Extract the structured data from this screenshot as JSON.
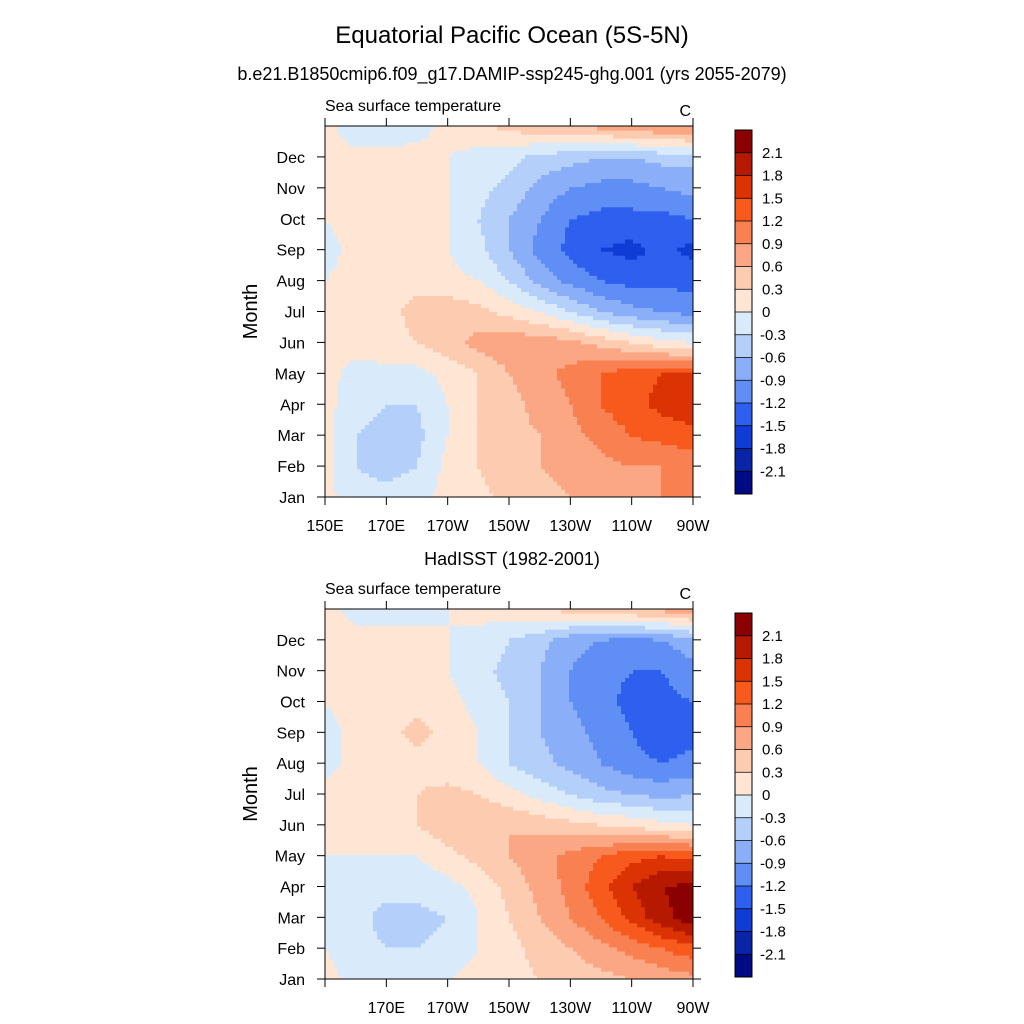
{
  "figure": {
    "title": "Equatorial Pacific Ocean (5S-5N)"
  },
  "colorbar": {
    "levels": [
      "2.1",
      "1.8",
      "1.5",
      "1.2",
      "0.9",
      "0.6",
      "0.3",
      "0",
      "-0.3",
      "-0.6",
      "-0.9",
      "-1.2",
      "-1.5",
      "-1.8",
      "-2.1"
    ],
    "colors": [
      "#8b0000",
      "#b51a00",
      "#dc3305",
      "#f85a1e",
      "#f98050",
      "#fba784",
      "#fdcbb0",
      "#ffe6d4",
      "#d9ebfb",
      "#b3cffa",
      "#8aaff8",
      "#5f8ef5",
      "#2f5fef",
      "#0f3cd4",
      "#0a24a8",
      "#000a85"
    ]
  },
  "chart_data": [
    {
      "type": "heatmap",
      "title": "b.e21.B1850cmip6.f09_g17.DAMIP-ssp245-ghg.001 (yrs 2055-2079)",
      "left_label": "Sea surface temperature",
      "units": "C",
      "ylabel": "Month",
      "xlabel": "",
      "x_ticks": [
        "150E",
        "170E",
        "170W",
        "150W",
        "130W",
        "110W",
        "90W"
      ],
      "y_ticks": [
        "Jan",
        "Feb",
        "Mar",
        "Apr",
        "May",
        "Jun",
        "Jul",
        "Aug",
        "Sep",
        "Oct",
        "Nov",
        "Dec"
      ],
      "xlim": [
        150,
        270
      ],
      "contour_levels": [
        -2.1,
        -1.8,
        -1.5,
        -1.2,
        -0.9,
        -0.6,
        -0.3,
        0,
        0.3,
        0.6,
        0.9,
        1.2,
        1.5,
        1.8,
        2.1
      ],
      "x": [
        150,
        160,
        170,
        180,
        190,
        200,
        210,
        220,
        230,
        240,
        250,
        260,
        270
      ],
      "months": [
        "Jan",
        "Feb",
        "Mar",
        "Apr",
        "May",
        "Jun",
        "Jul",
        "Aug",
        "Sep",
        "Oct",
        "Nov",
        "Dec",
        "Jan"
      ],
      "values": [
        [
          0.1,
          -0.2,
          -0.2,
          -0.1,
          0.1,
          0.2,
          0.4,
          0.5,
          0.6,
          0.7,
          0.8,
          0.9,
          1.0
        ],
        [
          0.1,
          -0.3,
          -0.4,
          -0.3,
          0.1,
          0.3,
          0.5,
          0.6,
          0.7,
          0.8,
          0.9,
          0.9,
          1.0
        ],
        [
          0.1,
          -0.3,
          -0.4,
          -0.4,
          0.0,
          0.3,
          0.5,
          0.6,
          0.8,
          1.0,
          1.2,
          1.3,
          1.4
        ],
        [
          0.1,
          -0.2,
          -0.3,
          -0.3,
          0.0,
          0.3,
          0.5,
          0.7,
          0.9,
          1.2,
          1.4,
          1.6,
          1.7
        ],
        [
          0.1,
          -0.1,
          -0.1,
          -0.1,
          0.1,
          0.3,
          0.6,
          0.8,
          1.0,
          1.2,
          1.4,
          1.5,
          1.5
        ],
        [
          0.1,
          0.1,
          0.2,
          0.3,
          0.5,
          0.7,
          0.8,
          0.8,
          0.7,
          0.5,
          0.3,
          0.1,
          0.0
        ],
        [
          0.1,
          0.1,
          0.2,
          0.4,
          0.5,
          0.4,
          0.2,
          0.0,
          -0.3,
          -0.6,
          -0.8,
          -0.9,
          -1.0
        ],
        [
          0.0,
          0.1,
          0.2,
          0.2,
          0.1,
          0.0,
          -0.3,
          -0.7,
          -1.0,
          -1.2,
          -1.3,
          -1.3,
          -1.3
        ],
        [
          -0.1,
          0.1,
          0.1,
          0.1,
          0.0,
          -0.2,
          -0.6,
          -1.0,
          -1.3,
          -1.5,
          -1.6,
          -1.4,
          -1.6
        ],
        [
          0.0,
          0.1,
          0.1,
          0.1,
          0.0,
          -0.3,
          -0.6,
          -0.9,
          -1.2,
          -1.3,
          -1.3,
          -1.3,
          -1.2
        ],
        [
          0.1,
          0.1,
          0.1,
          0.1,
          0.0,
          -0.2,
          -0.4,
          -0.7,
          -0.9,
          -1.0,
          -1.0,
          -0.9,
          -0.8
        ],
        [
          0.1,
          0.1,
          0.1,
          0.1,
          0.0,
          -0.1,
          -0.2,
          -0.4,
          -0.5,
          -0.6,
          -0.6,
          -0.5,
          -0.5
        ],
        [
          0.1,
          -0.2,
          -0.2,
          -0.1,
          0.1,
          0.2,
          0.4,
          0.5,
          0.6,
          0.7,
          0.8,
          0.9,
          1.0
        ]
      ]
    },
    {
      "type": "heatmap",
      "title": "HadISST (1982-2001)",
      "left_label": "Sea surface temperature",
      "units": "C",
      "ylabel": "Month",
      "xlabel": "",
      "x_ticks": [
        "",
        "170E",
        "170W",
        "150W",
        "130W",
        "110W",
        "90W"
      ],
      "y_ticks": [
        "Jan",
        "Feb",
        "Mar",
        "Apr",
        "May",
        "Jun",
        "Jul",
        "Aug",
        "Sep",
        "Oct",
        "Nov",
        "Dec"
      ],
      "xlim": [
        150,
        270
      ],
      "contour_levels": [
        -2.1,
        -1.8,
        -1.5,
        -1.2,
        -0.9,
        -0.6,
        -0.3,
        0,
        0.3,
        0.6,
        0.9,
        1.2,
        1.5,
        1.8,
        2.1
      ],
      "x": [
        150,
        160,
        170,
        180,
        190,
        200,
        210,
        220,
        230,
        240,
        250,
        260,
        270
      ],
      "months": [
        "Jan",
        "Feb",
        "Mar",
        "Apr",
        "May",
        "Jun",
        "Jul",
        "Aug",
        "Sep",
        "Oct",
        "Nov",
        "Dec",
        "Jan"
      ],
      "values": [
        [
          0.1,
          -0.1,
          -0.1,
          -0.1,
          0.0,
          0.1,
          0.2,
          0.3,
          0.4,
          0.5,
          0.6,
          0.7,
          0.8
        ],
        [
          0.0,
          -0.2,
          -0.3,
          -0.3,
          -0.2,
          0.0,
          0.2,
          0.4,
          0.6,
          0.8,
          1.0,
          1.2,
          1.4
        ],
        [
          0.0,
          -0.2,
          -0.4,
          -0.4,
          -0.3,
          0.0,
          0.3,
          0.6,
          0.9,
          1.2,
          1.6,
          2.0,
          2.3
        ],
        [
          0.0,
          -0.1,
          -0.2,
          -0.2,
          -0.1,
          0.1,
          0.4,
          0.7,
          1.0,
          1.4,
          1.8,
          2.1,
          2.2
        ],
        [
          0.0,
          0.0,
          0.0,
          0.0,
          0.2,
          0.4,
          0.6,
          0.8,
          1.0,
          1.2,
          1.4,
          1.5,
          1.4
        ],
        [
          0.1,
          0.1,
          0.2,
          0.3,
          0.5,
          0.6,
          0.6,
          0.5,
          0.4,
          0.3,
          0.2,
          0.1,
          0.0
        ],
        [
          0.1,
          0.1,
          0.2,
          0.3,
          0.4,
          0.3,
          0.1,
          -0.1,
          -0.3,
          -0.5,
          -0.6,
          -0.7,
          -0.6
        ],
        [
          -0.1,
          0.1,
          0.1,
          0.2,
          0.1,
          0.0,
          -0.3,
          -0.5,
          -0.7,
          -0.9,
          -1.1,
          -1.2,
          -1.1
        ],
        [
          -0.1,
          0.1,
          0.2,
          0.4,
          0.2,
          0.0,
          -0.3,
          -0.6,
          -0.8,
          -1.0,
          -1.2,
          -1.4,
          -1.3
        ],
        [
          0.0,
          0.1,
          0.1,
          0.2,
          0.1,
          -0.1,
          -0.3,
          -0.6,
          -0.9,
          -1.1,
          -1.3,
          -1.3,
          -1.2
        ],
        [
          0.1,
          0.1,
          0.1,
          0.1,
          0.0,
          -0.2,
          -0.4,
          -0.6,
          -0.9,
          -1.1,
          -1.2,
          -1.2,
          -1.0
        ],
        [
          0.1,
          0.1,
          0.1,
          0.1,
          0.0,
          -0.1,
          -0.3,
          -0.5,
          -0.8,
          -0.9,
          -1.0,
          -0.9,
          -0.7
        ],
        [
          0.1,
          -0.1,
          -0.1,
          -0.1,
          0.0,
          0.1,
          0.2,
          0.3,
          0.4,
          0.5,
          0.6,
          0.7,
          0.8
        ]
      ]
    }
  ]
}
